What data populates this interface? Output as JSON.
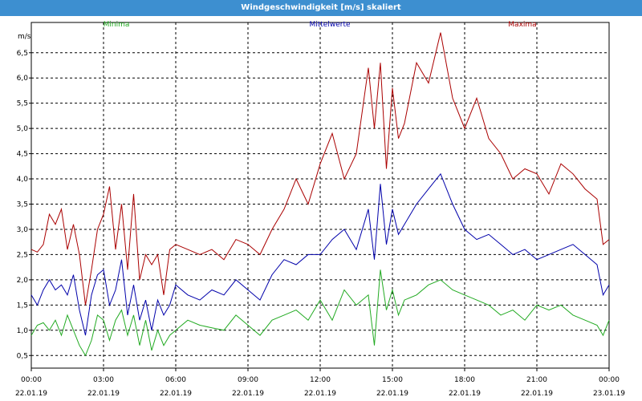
{
  "window": {
    "title": "Windgeschwindigkeit [m/s] skaliert"
  },
  "colors": {
    "titlebar": "#3d8fd0",
    "min": "#22aa22",
    "mean": "#0000aa",
    "max": "#aa0000",
    "grid": "#000000"
  },
  "chart_data": {
    "type": "line",
    "title": "Windgeschwindigkeit [m/s] skaliert",
    "ylabel": "m/s",
    "xlim": [
      0,
      24
    ],
    "ylim": [
      0.25,
      7.1
    ],
    "y_ticks": [
      0.5,
      1.0,
      1.5,
      2.0,
      2.5,
      3.0,
      3.5,
      4.0,
      4.5,
      5.0,
      5.5,
      6.0,
      6.5
    ],
    "y_tick_labels": [
      "0,5",
      "1,0",
      "1,5",
      "2,0",
      "2,5",
      "3,0",
      "3,5",
      "4,0",
      "4,5",
      "5,0",
      "5,5",
      "6,0",
      "6,5"
    ],
    "x_ticks": [
      {
        "hour": 0,
        "time": "00:00",
        "date": "22.01.19"
      },
      {
        "hour": 3,
        "time": "03:00",
        "date": "22.01.19"
      },
      {
        "hour": 6,
        "time": "06:00",
        "date": "22.01.19"
      },
      {
        "hour": 9,
        "time": "09:00",
        "date": "22.01.19"
      },
      {
        "hour": 12,
        "time": "12:00",
        "date": "22.01.19"
      },
      {
        "hour": 15,
        "time": "15:00",
        "date": "22.01.19"
      },
      {
        "hour": 18,
        "time": "18:00",
        "date": "22.01.19"
      },
      {
        "hour": 21,
        "time": "21:00",
        "date": "22.01.19"
      },
      {
        "hour": 24,
        "time": "00:00",
        "date": "23.01.19"
      }
    ],
    "grid": true,
    "legend_position": "top",
    "series": [
      {
        "name": "Minima",
        "color": "#22aa22",
        "x": [
          0.0,
          0.25,
          0.5,
          0.75,
          1.0,
          1.25,
          1.5,
          1.75,
          2.0,
          2.25,
          2.5,
          2.75,
          3.0,
          3.25,
          3.5,
          3.75,
          4.0,
          4.25,
          4.5,
          4.75,
          5.0,
          5.25,
          5.5,
          5.75,
          6.0,
          6.5,
          7.0,
          7.5,
          8.0,
          8.5,
          9.0,
          9.5,
          10.0,
          10.5,
          11.0,
          11.5,
          12.0,
          12.5,
          13.0,
          13.5,
          14.0,
          14.25,
          14.5,
          14.75,
          15.0,
          15.25,
          15.5,
          16.0,
          16.5,
          17.0,
          17.5,
          18.0,
          18.5,
          19.0,
          19.5,
          20.0,
          20.5,
          21.0,
          21.5,
          22.0,
          22.5,
          23.0,
          23.5,
          23.75,
          24.0
        ],
        "y": [
          0.9,
          1.1,
          1.15,
          1.0,
          1.2,
          0.9,
          1.3,
          1.0,
          0.7,
          0.5,
          0.8,
          1.3,
          1.2,
          0.8,
          1.2,
          1.4,
          0.9,
          1.3,
          0.7,
          1.2,
          0.6,
          1.0,
          0.7,
          0.9,
          1.0,
          1.2,
          1.1,
          1.05,
          1.0,
          1.3,
          1.1,
          0.9,
          1.2,
          1.3,
          1.4,
          1.2,
          1.6,
          1.2,
          1.8,
          1.5,
          1.7,
          0.7,
          2.2,
          1.4,
          1.8,
          1.3,
          1.6,
          1.7,
          1.9,
          2.0,
          1.8,
          1.7,
          1.6,
          1.5,
          1.3,
          1.4,
          1.2,
          1.5,
          1.4,
          1.5,
          1.3,
          1.2,
          1.1,
          0.9,
          1.2
        ]
      },
      {
        "name": "Mittelwerte",
        "color": "#0000aa",
        "x": [
          0.0,
          0.25,
          0.5,
          0.75,
          1.0,
          1.25,
          1.5,
          1.75,
          2.0,
          2.25,
          2.5,
          2.75,
          3.0,
          3.25,
          3.5,
          3.75,
          4.0,
          4.25,
          4.5,
          4.75,
          5.0,
          5.25,
          5.5,
          5.75,
          6.0,
          6.5,
          7.0,
          7.5,
          8.0,
          8.5,
          9.0,
          9.5,
          10.0,
          10.5,
          11.0,
          11.5,
          12.0,
          12.5,
          13.0,
          13.5,
          14.0,
          14.25,
          14.5,
          14.75,
          15.0,
          15.25,
          15.5,
          16.0,
          16.5,
          17.0,
          17.5,
          18.0,
          18.5,
          19.0,
          19.5,
          20.0,
          20.5,
          21.0,
          21.5,
          22.0,
          22.5,
          23.0,
          23.5,
          23.75,
          24.0
        ],
        "y": [
          1.7,
          1.5,
          1.8,
          2.0,
          1.8,
          1.9,
          1.7,
          2.1,
          1.4,
          0.9,
          1.7,
          2.1,
          2.2,
          1.5,
          1.8,
          2.4,
          1.3,
          1.9,
          1.2,
          1.6,
          1.0,
          1.6,
          1.3,
          1.5,
          1.9,
          1.7,
          1.6,
          1.8,
          1.7,
          2.0,
          1.8,
          1.6,
          2.1,
          2.4,
          2.3,
          2.5,
          2.5,
          2.8,
          3.0,
          2.6,
          3.4,
          2.4,
          3.9,
          2.7,
          3.4,
          2.9,
          3.1,
          3.5,
          3.8,
          4.1,
          3.5,
          3.0,
          2.8,
          2.9,
          2.7,
          2.5,
          2.6,
          2.4,
          2.5,
          2.6,
          2.7,
          2.5,
          2.3,
          1.7,
          1.9
        ]
      },
      {
        "name": "Maxima",
        "color": "#aa0000",
        "x": [
          0.0,
          0.25,
          0.5,
          0.75,
          1.0,
          1.25,
          1.5,
          1.75,
          2.0,
          2.25,
          2.5,
          2.75,
          3.0,
          3.25,
          3.5,
          3.75,
          4.0,
          4.25,
          4.5,
          4.75,
          5.0,
          5.25,
          5.5,
          5.75,
          6.0,
          6.5,
          7.0,
          7.5,
          8.0,
          8.5,
          9.0,
          9.5,
          10.0,
          10.5,
          11.0,
          11.5,
          12.0,
          12.5,
          13.0,
          13.5,
          14.0,
          14.25,
          14.5,
          14.75,
          15.0,
          15.25,
          15.5,
          16.0,
          16.5,
          17.0,
          17.5,
          18.0,
          18.5,
          19.0,
          19.5,
          20.0,
          20.5,
          21.0,
          21.5,
          22.0,
          22.5,
          23.0,
          23.5,
          23.75,
          24.0
        ],
        "y": [
          2.6,
          2.55,
          2.7,
          3.3,
          3.1,
          3.4,
          2.6,
          3.1,
          2.5,
          1.5,
          2.2,
          3.0,
          3.3,
          3.85,
          2.6,
          3.5,
          2.2,
          3.7,
          2.0,
          2.5,
          2.3,
          2.5,
          1.7,
          2.6,
          2.7,
          2.6,
          2.5,
          2.6,
          2.4,
          2.8,
          2.7,
          2.5,
          3.0,
          3.4,
          4.0,
          3.5,
          4.3,
          4.9,
          4.0,
          4.5,
          6.2,
          5.0,
          6.3,
          4.2,
          5.8,
          4.8,
          5.1,
          6.3,
          5.9,
          6.9,
          5.6,
          5.0,
          5.6,
          4.8,
          4.5,
          4.0,
          4.2,
          4.1,
          3.7,
          4.3,
          4.1,
          3.8,
          3.6,
          2.7,
          2.8
        ]
      }
    ]
  }
}
